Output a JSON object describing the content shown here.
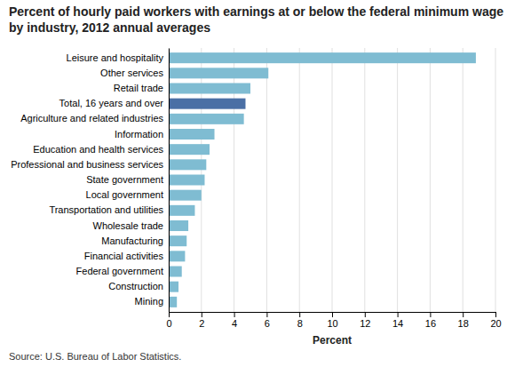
{
  "chart_data": {
    "type": "bar",
    "orientation": "horizontal",
    "title": "Percent of hourly paid workers with earnings at or below the federal minimum wage by industry, 2012 annual averages",
    "categories": [
      "Mining",
      "Construction",
      "Federal government",
      "Financial activities",
      "Manufacturing",
      "Wholesale trade",
      "Transportation and utilities",
      "Local government",
      "State government",
      "Professional and business services",
      "Education and health services",
      "Information",
      "Agriculture and related industries",
      "Total, 16 years and over",
      "Retail trade",
      "Other services",
      "Leisure and hospitality"
    ],
    "values": [
      0.5,
      0.6,
      0.8,
      1.0,
      1.1,
      1.2,
      1.6,
      2.0,
      2.2,
      2.3,
      2.5,
      2.8,
      4.6,
      4.7,
      5.0,
      6.1,
      18.8
    ],
    "colors": [
      "#7fbcd2",
      "#7fbcd2",
      "#7fbcd2",
      "#7fbcd2",
      "#7fbcd2",
      "#7fbcd2",
      "#7fbcd2",
      "#7fbcd2",
      "#7fbcd2",
      "#7fbcd2",
      "#7fbcd2",
      "#7fbcd2",
      "#7fbcd2",
      "#4a6fa5",
      "#7fbcd2",
      "#7fbcd2",
      "#7fbcd2"
    ],
    "x_label": "Percent",
    "xlim": [
      0,
      20
    ],
    "xticks": [
      0,
      2,
      4,
      6,
      8,
      10,
      12,
      14,
      16,
      18,
      20
    ],
    "grid": true,
    "source": "Source: U.S. Bureau of Labor Statistics."
  }
}
